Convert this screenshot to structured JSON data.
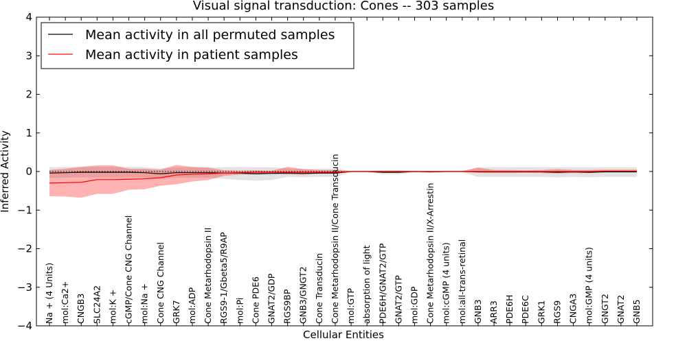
{
  "chart_data": {
    "type": "line",
    "title": "Visual signal transduction: Cones -- 303 samples",
    "xlabel": "Cellular Entities",
    "ylabel": "Inferred Activity",
    "ylim": [
      -4,
      4
    ],
    "yticks": [
      "4",
      "3",
      "2",
      "1",
      "0",
      "−1",
      "−2",
      "−3",
      "−4"
    ],
    "grid": false,
    "legend_position": "top-left",
    "categories": [
      "Na + (4 Units)",
      "mol:Ca2+",
      "CNGB3",
      "SLC24A2",
      "mol:K +",
      "cGMP/Cone CNG Channel",
      "mol:Na +",
      "Cone CNG Channel",
      "GRK7",
      "mol:ADP",
      "Cone Metarhodopsin II",
      "RGS9-1/Gbeta5/R9AP",
      "mol:Pi",
      "Cone PDE6",
      "GNAT2/GDP",
      "RGS9BP",
      "GNB3/GNGT2",
      "Cone Transducin",
      "Cone Metarhodopsin II/Cone Transducin",
      "mol:GTP",
      "absorption of light",
      "PDE6H/GNAT2/GTP",
      "GNAT2/GTP",
      "mol:GDP",
      "Cone Metarhodopsin II/X-Arrestin",
      "mol:cGMP (4 units)",
      "mol:all-trans-retinal",
      "GNB3",
      "ARR3",
      "PDE6H",
      "PDE6C",
      "GRK1",
      "RGS9",
      "CNGA3",
      "mol:GMP (4 units)",
      "GNGT2",
      "GNAT2",
      "GNB5"
    ],
    "series": [
      {
        "name": "Mean activity in all permuted samples",
        "color": "#000000",
        "values": [
          -0.04,
          -0.03,
          -0.02,
          -0.02,
          -0.02,
          -0.02,
          -0.03,
          -0.06,
          -0.03,
          -0.03,
          -0.03,
          -0.04,
          -0.04,
          -0.06,
          -0.05,
          -0.04,
          -0.05,
          -0.04,
          -0.04,
          0.0,
          0.0,
          -0.02,
          -0.02,
          0.0,
          -0.01,
          0.0,
          0.0,
          -0.01,
          -0.01,
          -0.01,
          -0.01,
          -0.01,
          -0.02,
          -0.01,
          -0.02,
          -0.01,
          -0.01,
          -0.01
        ],
        "lower": [
          -0.17,
          -0.16,
          -0.15,
          -0.15,
          -0.15,
          -0.15,
          -0.16,
          -0.19,
          -0.16,
          -0.16,
          -0.16,
          -0.19,
          -0.22,
          -0.24,
          -0.22,
          -0.14,
          -0.15,
          -0.14,
          -0.14,
          -0.02,
          -0.02,
          -0.07,
          -0.07,
          -0.02,
          -0.04,
          -0.02,
          -0.02,
          -0.14,
          -0.14,
          -0.14,
          -0.14,
          -0.14,
          -0.15,
          -0.14,
          -0.15,
          -0.14,
          -0.14,
          -0.14
        ],
        "upper": [
          0.11,
          0.12,
          0.12,
          0.12,
          0.12,
          0.12,
          0.11,
          0.08,
          0.11,
          0.11,
          0.11,
          0.11,
          0.12,
          0.11,
          0.11,
          0.08,
          0.07,
          0.07,
          0.07,
          0.02,
          0.02,
          0.03,
          0.03,
          0.02,
          0.02,
          0.02,
          0.02,
          0.11,
          0.11,
          0.11,
          0.11,
          0.11,
          0.11,
          0.11,
          0.11,
          0.11,
          0.11,
          0.11
        ]
      },
      {
        "name": "Mean activity in patient samples",
        "color": "#ff0000",
        "values": [
          -0.3,
          -0.29,
          -0.28,
          -0.21,
          -0.21,
          -0.2,
          -0.19,
          -0.16,
          -0.09,
          -0.07,
          -0.06,
          -0.04,
          -0.03,
          -0.02,
          -0.02,
          -0.02,
          -0.02,
          -0.02,
          -0.02,
          0.0,
          0.0,
          0.0,
          0.0,
          0.0,
          0.0,
          0.0,
          0.0,
          0.0,
          0.0,
          0.0,
          0.0,
          0.0,
          0.0,
          0.0,
          0.0,
          0.01,
          0.01,
          0.01
        ],
        "lower": [
          -0.64,
          -0.65,
          -0.68,
          -0.58,
          -0.58,
          -0.47,
          -0.46,
          -0.37,
          -0.33,
          -0.26,
          -0.22,
          -0.11,
          -0.08,
          -0.07,
          -0.06,
          -0.08,
          -0.08,
          -0.06,
          -0.06,
          -0.01,
          -0.01,
          -0.02,
          -0.02,
          -0.01,
          -0.01,
          -0.01,
          -0.01,
          -0.03,
          -0.04,
          -0.04,
          -0.03,
          -0.04,
          -0.05,
          -0.04,
          -0.04,
          -0.02,
          -0.02,
          -0.02
        ],
        "upper": [
          0.04,
          0.07,
          0.12,
          0.16,
          0.16,
          0.07,
          0.07,
          0.05,
          0.17,
          0.12,
          0.1,
          0.03,
          0.02,
          0.03,
          0.02,
          0.12,
          0.06,
          0.04,
          0.04,
          0.01,
          0.01,
          0.02,
          0.02,
          0.01,
          0.01,
          0.01,
          0.01,
          0.1,
          0.04,
          0.04,
          0.03,
          0.04,
          0.06,
          0.04,
          0.04,
          0.05,
          0.05,
          0.05
        ]
      }
    ]
  }
}
